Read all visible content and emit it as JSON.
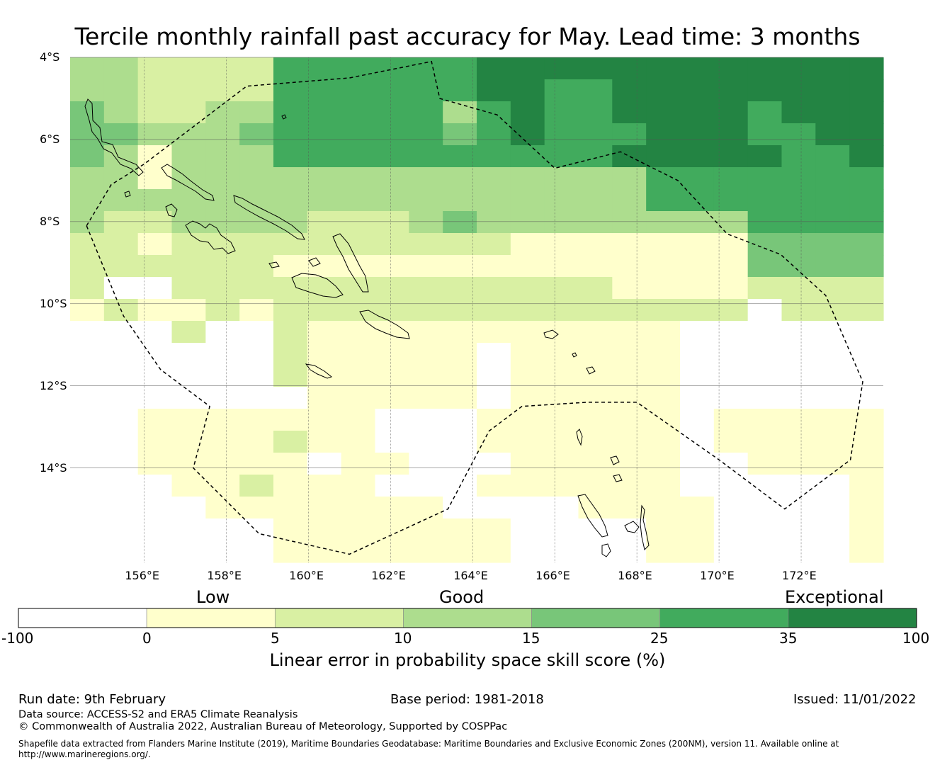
{
  "title": "Tercile monthly rainfall past accuracy for May. Lead time: 3 months",
  "map": {
    "lon_range": [
      154.2,
      174.0
    ],
    "lat_range": [
      -16.3,
      -4.0
    ],
    "lat_labels": [
      "4°S",
      "6°S",
      "8°S",
      "10°S",
      "12°S",
      "14°S"
    ],
    "lat_values": [
      -4,
      -6,
      -8,
      -10,
      -12,
      -14
    ],
    "lon_labels": [
      "156°E",
      "158°E",
      "160°E",
      "162°E",
      "164°E",
      "166°E",
      "168°E",
      "170°E",
      "172°E"
    ],
    "lon_values": [
      156,
      158,
      160,
      162,
      164,
      166,
      168,
      170,
      172
    ],
    "grid": {
      "lon_start": 154.2,
      "lat_start": -4.0,
      "cell_lon": 0.8333,
      "cell_lat": 0.5517,
      "cols": 24,
      "rows": 23,
      "class_rows": [
        "332222555555666666666666",
        "332222555555665566666666",
        "432233555553565566665666",
        "443334555554565556665566",
        "431333555555555566666556",
        "331333333333333335555555",
        "333333333333333335555555",
        "322333322234333333335555",
        "221222222222211111114444",
        "222222111111111111114444",
        "200222222222222211112222",
        "121121222222222222220222",
        "000200211111111111000000",
        "000000211111011111000000",
        "000000211111011111000000",
        "000000011111011111000000",
        "001111111000111111011111",
        "001111211000111111011111",
        "001111101100011111001111",
        "000112111000111111000001",
        "000011111110000111100001",
        "000000111111100001100001",
        "000000111111100001100001"
      ]
    },
    "eez_path_lonlat": [
      [
        154.6,
        -8.1
      ],
      [
        155.2,
        -7.1
      ],
      [
        156.0,
        -6.6
      ],
      [
        158.5,
        -4.7
      ],
      [
        161.0,
        -4.5
      ],
      [
        163.0,
        -4.1
      ],
      [
        163.2,
        -5.0
      ],
      [
        164.6,
        -5.4
      ],
      [
        166.0,
        -6.7
      ],
      [
        167.6,
        -6.3
      ],
      [
        169.0,
        -7.0
      ],
      [
        170.2,
        -8.3
      ],
      [
        171.5,
        -8.8
      ],
      [
        172.6,
        -9.8
      ],
      [
        173.5,
        -11.9
      ],
      [
        173.2,
        -13.8
      ],
      [
        171.6,
        -15.0
      ],
      [
        170.0,
        -13.8
      ],
      [
        168.0,
        -12.4
      ],
      [
        166.8,
        -12.4
      ],
      [
        165.2,
        -12.5
      ],
      [
        164.4,
        -13.1
      ],
      [
        163.4,
        -15.0
      ],
      [
        161.0,
        -16.1
      ],
      [
        158.8,
        -15.6
      ],
      [
        157.2,
        -14.0
      ],
      [
        157.6,
        -12.5
      ],
      [
        156.4,
        -11.6
      ],
      [
        155.5,
        -10.3
      ],
      [
        154.6,
        -8.1
      ]
    ]
  },
  "colorbar": {
    "categories": [
      "Low",
      "Good",
      "Exceptional"
    ],
    "ticks": [
      "-100",
      "0",
      "5",
      "10",
      "15",
      "25",
      "35",
      "100"
    ],
    "colors": [
      "#ffffff",
      "#ffffcc",
      "#d9f0a3",
      "#addd8e",
      "#78c679",
      "#41ab5d",
      "#238443"
    ],
    "title": "Linear error in probability space skill score (%)"
  },
  "footer": {
    "run_date": "Run date: 9th February",
    "base_period": "Base period: 1981-2018",
    "issued": "Issued: 11/01/2022",
    "data_source": "Data source: ACCESS-S2 and ERA5 Climate Reanalysis",
    "copyright": "© Commonwealth of Australia 2022, Australian Bureau of Meteorology, Supported by COSPPac",
    "shapefile_line1": "Shapefile data extracted from Flanders Marine Institute (2019), Maritime Boundaries Geodatabase: Maritime Boundaries and Exclusive Economic Zones (200NM), version 11. Available online at",
    "shapefile_line2": "http://www.marineregions.org/."
  }
}
